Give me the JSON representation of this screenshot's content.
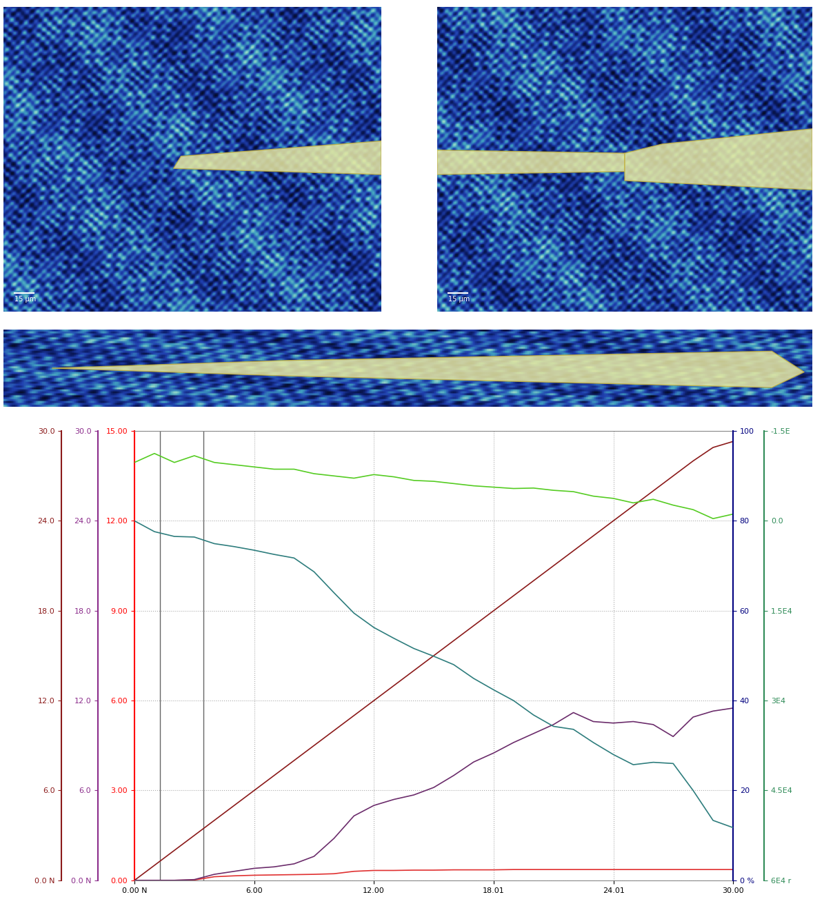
{
  "micrographs": [
    {
      "scale_bar": "15 µm"
    },
    {
      "scale_bar": "15 µm"
    },
    {
      "scale_bar": null
    }
  ],
  "chart_data": {
    "type": "line",
    "grid": true,
    "x": [
      0,
      1,
      2,
      3,
      4,
      5,
      6,
      7,
      8,
      9,
      10,
      11,
      12,
      13,
      14,
      15,
      16,
      17,
      18,
      19,
      20,
      21,
      22,
      23,
      24,
      25,
      26,
      27,
      28,
      29,
      30
    ],
    "xlim": [
      0,
      30
    ],
    "xticks": [
      {
        "value": 0,
        "label": "0.00 N"
      },
      {
        "value": 6,
        "label": "6.00"
      },
      {
        "value": 12,
        "label": "12.00"
      },
      {
        "value": 18.01,
        "label": "18.01"
      },
      {
        "value": 24.01,
        "label": "24.01"
      },
      {
        "value": 30,
        "label": "30.00"
      }
    ],
    "markers": [
      1.28,
      3.46
    ],
    "y_axes": [
      {
        "side": "left",
        "color": "#8b1a1a",
        "ylim": [
          0,
          30
        ],
        "yticks": [
          {
            "value": 0,
            "label": "0.0 N"
          },
          {
            "value": 6,
            "label": "6.0"
          },
          {
            "value": 12,
            "label": "12.0"
          },
          {
            "value": 18,
            "label": "18.0"
          },
          {
            "value": 24,
            "label": "24.0"
          },
          {
            "value": 30,
            "label": "30.0"
          }
        ]
      },
      {
        "side": "left",
        "color": "#8b2c8b",
        "ylim": [
          0,
          30
        ],
        "yticks": [
          {
            "value": 0,
            "label": "0.0 N"
          },
          {
            "value": 6,
            "label": "6.0"
          },
          {
            "value": 12,
            "label": "12.0"
          },
          {
            "value": 18,
            "label": "18.0"
          },
          {
            "value": 24,
            "label": "24.0"
          },
          {
            "value": 30,
            "label": "30.0"
          }
        ]
      },
      {
        "side": "left",
        "color": "#ff0000",
        "ylim": [
          0,
          15
        ],
        "yticks": [
          {
            "value": 0,
            "label": "0.00"
          },
          {
            "value": 3,
            "label": "3.00"
          },
          {
            "value": 6,
            "label": "6.00"
          },
          {
            "value": 9,
            "label": "9.00"
          },
          {
            "value": 12,
            "label": "12.00"
          },
          {
            "value": 15,
            "label": "15.00"
          }
        ]
      },
      {
        "side": "right",
        "color": "#00007f",
        "ylim": [
          0,
          100
        ],
        "yticks": [
          {
            "value": 0,
            "label": "0 %"
          },
          20,
          40,
          60,
          80,
          100
        ]
      },
      {
        "side": "right",
        "color": "#2e8b57",
        "ylim": [
          60000,
          -15000
        ],
        "yticks": [
          {
            "value": -15000,
            "label": "-1.5E"
          },
          {
            "value": 0,
            "label": "0.0"
          },
          {
            "value": 15000,
            "label": "1.5E4"
          },
          {
            "value": 30000,
            "label": "3E4"
          },
          {
            "value": 45000,
            "label": "4.5E4"
          },
          {
            "value": 60000,
            "label": "6E4 r"
          }
        ]
      }
    ],
    "series": [
      {
        "axis": 0,
        "color": "#8b1a1a",
        "values": [
          0,
          1,
          2,
          3,
          4,
          5,
          6,
          7,
          8,
          9,
          10,
          11,
          12,
          13,
          14,
          15,
          16,
          17,
          18,
          19,
          20,
          21,
          22,
          23,
          24,
          25,
          26,
          27,
          28,
          28.9,
          29.3
        ]
      },
      {
        "axis": 1,
        "color": "#6b2c6b",
        "values": [
          0,
          0,
          0,
          0.05,
          0.4,
          0.6,
          0.8,
          0.9,
          1.1,
          1.6,
          2.8,
          4.3,
          5.0,
          5.4,
          5.7,
          6.2,
          7.0,
          7.9,
          8.5,
          9.2,
          9.8,
          10.4,
          11.2,
          10.6,
          10.5,
          10.6,
          10.4,
          9.6,
          10.9,
          11.3,
          11.5
        ]
      },
      {
        "axis": 2,
        "color": "#e03030",
        "values": [
          0,
          0,
          0,
          0.01,
          0.12,
          0.15,
          0.17,
          0.18,
          0.19,
          0.2,
          0.22,
          0.3,
          0.33,
          0.33,
          0.34,
          0.34,
          0.35,
          0.35,
          0.35,
          0.36,
          0.36,
          0.36,
          0.36,
          0.36,
          0.36,
          0.36,
          0.36,
          0.36,
          0.36,
          0.36,
          0.36
        ]
      },
      {
        "axis": 3,
        "color": "#55cc22",
        "values": [
          93.0,
          95.0,
          93.0,
          94.5,
          93.0,
          92.5,
          92.0,
          91.5,
          91.5,
          90.5,
          90.0,
          89.5,
          90.3,
          89.8,
          89.0,
          88.8,
          88.3,
          87.8,
          87.5,
          87.2,
          87.3,
          86.8,
          86.5,
          85.5,
          85.0,
          84.0,
          84.8,
          83.5,
          82.5,
          80.5,
          81.5
        ]
      },
      {
        "axis": 4,
        "color": "#2e7d7d",
        "values": [
          0,
          1800,
          2600,
          2700,
          3800,
          4300,
          4900,
          5600,
          6200,
          8500,
          12000,
          15400,
          17800,
          19600,
          21300,
          22600,
          24000,
          26300,
          28200,
          30000,
          32400,
          34300,
          34800,
          37000,
          39000,
          40700,
          40300,
          40500,
          45000,
          50000,
          51200
        ]
      }
    ]
  }
}
